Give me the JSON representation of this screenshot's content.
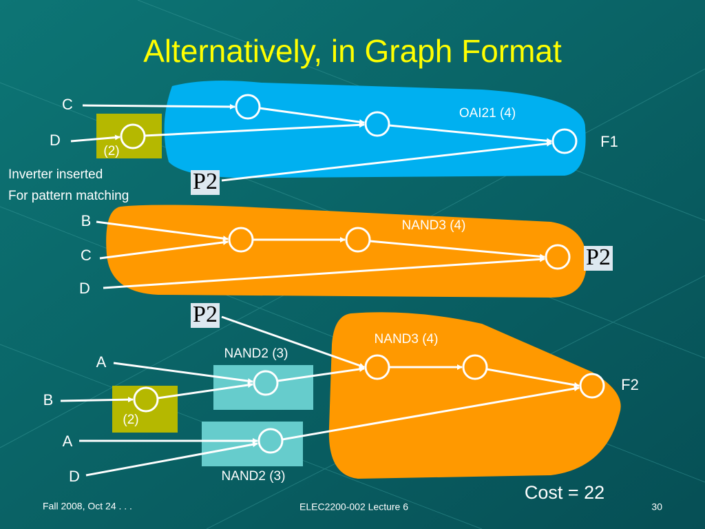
{
  "title": "Alternatively, in Graph Format",
  "top": {
    "inputs": [
      "C",
      "D"
    ],
    "inverter_cost": "(2)",
    "note": [
      "Inverter inserted",
      "For pattern matching"
    ],
    "gate": "OAI21 (4)",
    "output": "F1",
    "pattern": "P2"
  },
  "middle": {
    "inputs": [
      "B",
      "C",
      "D"
    ],
    "gate": "NAND3 (4)",
    "pattern": "P2"
  },
  "bottom": {
    "pattern": "P2",
    "gate": "NAND3 (4)",
    "nand2_top": "NAND2 (3)",
    "inputs": [
      "A",
      "B",
      "A",
      "D"
    ],
    "inverter_cost": "(2)",
    "nand2_bottom": "NAND2 (3)",
    "output": "F2"
  },
  "cost": "Cost = 22",
  "footer": {
    "left": "Fall 2008, Oct 24 . . .",
    "center": "ELEC2200-002 Lecture 6",
    "right": "30"
  }
}
